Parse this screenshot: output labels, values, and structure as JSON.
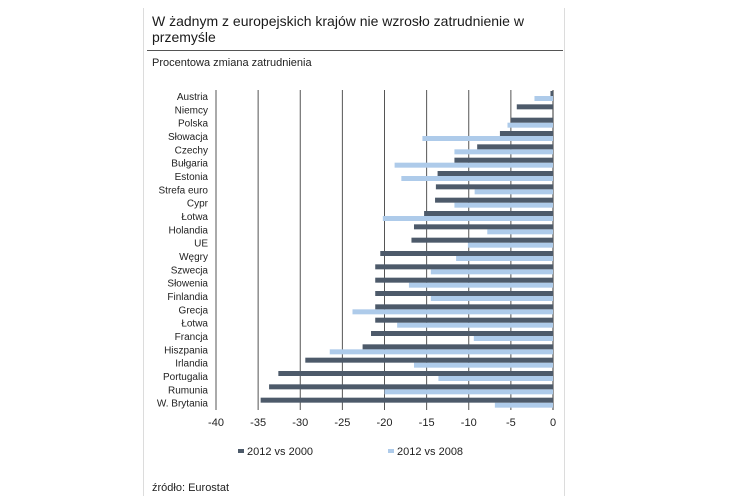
{
  "title": "W żadnym z europejskich krajów nie wzrosło zatrudnienie w przemyśle",
  "subtitle": "Procentowa zmiana zatrudnienia",
  "source": "źródło: Eurostat",
  "chart_data": {
    "type": "bar",
    "orientation": "horizontal",
    "categories": [
      "Austria",
      "Niemcy",
      "Polska",
      "Słowacja",
      "Czechy",
      "Bułgaria",
      "Estonia",
      "Strefa euro",
      "Cypr",
      "Łotwa",
      "Holandia",
      "UE",
      "Węgry",
      "Szwecja",
      "Słowenia",
      "Finlandia",
      "Grecja",
      "Łotwa",
      "Francja",
      "Hiszpania",
      "Irlandia",
      "Portugalia",
      "Rumunia",
      "W. Brytania"
    ],
    "series": [
      {
        "name": "2012 vs 2000",
        "color": "#4d5a6a",
        "values": [
          -0.3,
          -4.3,
          -5,
          -6.3,
          -9,
          -11.7,
          -13.7,
          -13.9,
          -14,
          -15.3,
          -16.5,
          -16.8,
          -20.5,
          -21.1,
          -21.1,
          -21.1,
          -21.1,
          -21.1,
          -21.6,
          -22.6,
          -29.4,
          -32.6,
          -33.7,
          -34.7
        ]
      },
      {
        "name": "2012 vs 2008",
        "color": "#aecbea",
        "values": [
          -2.2,
          0,
          -5.4,
          -15.5,
          -11.7,
          -18.8,
          -18,
          -9.3,
          -11.7,
          -20.2,
          -7.8,
          -10.1,
          -11.5,
          -14.5,
          -17.1,
          -14.5,
          -23.8,
          -18.5,
          -9.4,
          -26.5,
          -16.5,
          -13.6,
          -20,
          -6.9
        ]
      }
    ],
    "xlim": [
      -40,
      0
    ],
    "xticks": [
      -40,
      -35,
      -30,
      -25,
      -20,
      -15,
      -10,
      -5,
      0
    ],
    "grid": true,
    "legend": "bottom"
  }
}
